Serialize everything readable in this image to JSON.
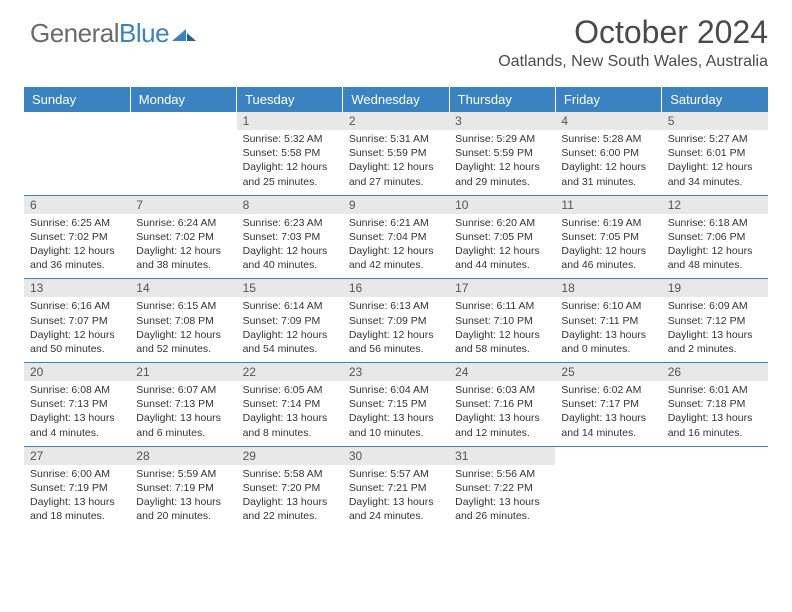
{
  "brand": {
    "text_general": "General",
    "text_blue": "Blue"
  },
  "title": "October 2024",
  "subtitle": "Oatlands, New South Wales, Australia",
  "colors": {
    "header_bg": "#3b83c0",
    "header_text": "#ffffff",
    "daynum_bg": "#e8e8e8",
    "daynum_text": "#555555",
    "border": "#3b83c0",
    "page_bg": "#ffffff",
    "brand_gray": "#6b6b6b",
    "brand_blue": "#3b83c0"
  },
  "weekdays": [
    "Sunday",
    "Monday",
    "Tuesday",
    "Wednesday",
    "Thursday",
    "Friday",
    "Saturday"
  ],
  "weeks": [
    [
      {
        "empty": true
      },
      {
        "empty": true
      },
      {
        "n": "1",
        "sunrise": "Sunrise: 5:32 AM",
        "sunset": "Sunset: 5:58 PM",
        "day1": "Daylight: 12 hours",
        "day2": "and 25 minutes."
      },
      {
        "n": "2",
        "sunrise": "Sunrise: 5:31 AM",
        "sunset": "Sunset: 5:59 PM",
        "day1": "Daylight: 12 hours",
        "day2": "and 27 minutes."
      },
      {
        "n": "3",
        "sunrise": "Sunrise: 5:29 AM",
        "sunset": "Sunset: 5:59 PM",
        "day1": "Daylight: 12 hours",
        "day2": "and 29 minutes."
      },
      {
        "n": "4",
        "sunrise": "Sunrise: 5:28 AM",
        "sunset": "Sunset: 6:00 PM",
        "day1": "Daylight: 12 hours",
        "day2": "and 31 minutes."
      },
      {
        "n": "5",
        "sunrise": "Sunrise: 5:27 AM",
        "sunset": "Sunset: 6:01 PM",
        "day1": "Daylight: 12 hours",
        "day2": "and 34 minutes."
      }
    ],
    [
      {
        "n": "6",
        "sunrise": "Sunrise: 6:25 AM",
        "sunset": "Sunset: 7:02 PM",
        "day1": "Daylight: 12 hours",
        "day2": "and 36 minutes."
      },
      {
        "n": "7",
        "sunrise": "Sunrise: 6:24 AM",
        "sunset": "Sunset: 7:02 PM",
        "day1": "Daylight: 12 hours",
        "day2": "and 38 minutes."
      },
      {
        "n": "8",
        "sunrise": "Sunrise: 6:23 AM",
        "sunset": "Sunset: 7:03 PM",
        "day1": "Daylight: 12 hours",
        "day2": "and 40 minutes."
      },
      {
        "n": "9",
        "sunrise": "Sunrise: 6:21 AM",
        "sunset": "Sunset: 7:04 PM",
        "day1": "Daylight: 12 hours",
        "day2": "and 42 minutes."
      },
      {
        "n": "10",
        "sunrise": "Sunrise: 6:20 AM",
        "sunset": "Sunset: 7:05 PM",
        "day1": "Daylight: 12 hours",
        "day2": "and 44 minutes."
      },
      {
        "n": "11",
        "sunrise": "Sunrise: 6:19 AM",
        "sunset": "Sunset: 7:05 PM",
        "day1": "Daylight: 12 hours",
        "day2": "and 46 minutes."
      },
      {
        "n": "12",
        "sunrise": "Sunrise: 6:18 AM",
        "sunset": "Sunset: 7:06 PM",
        "day1": "Daylight: 12 hours",
        "day2": "and 48 minutes."
      }
    ],
    [
      {
        "n": "13",
        "sunrise": "Sunrise: 6:16 AM",
        "sunset": "Sunset: 7:07 PM",
        "day1": "Daylight: 12 hours",
        "day2": "and 50 minutes."
      },
      {
        "n": "14",
        "sunrise": "Sunrise: 6:15 AM",
        "sunset": "Sunset: 7:08 PM",
        "day1": "Daylight: 12 hours",
        "day2": "and 52 minutes."
      },
      {
        "n": "15",
        "sunrise": "Sunrise: 6:14 AM",
        "sunset": "Sunset: 7:09 PM",
        "day1": "Daylight: 12 hours",
        "day2": "and 54 minutes."
      },
      {
        "n": "16",
        "sunrise": "Sunrise: 6:13 AM",
        "sunset": "Sunset: 7:09 PM",
        "day1": "Daylight: 12 hours",
        "day2": "and 56 minutes."
      },
      {
        "n": "17",
        "sunrise": "Sunrise: 6:11 AM",
        "sunset": "Sunset: 7:10 PM",
        "day1": "Daylight: 12 hours",
        "day2": "and 58 minutes."
      },
      {
        "n": "18",
        "sunrise": "Sunrise: 6:10 AM",
        "sunset": "Sunset: 7:11 PM",
        "day1": "Daylight: 13 hours",
        "day2": "and 0 minutes."
      },
      {
        "n": "19",
        "sunrise": "Sunrise: 6:09 AM",
        "sunset": "Sunset: 7:12 PM",
        "day1": "Daylight: 13 hours",
        "day2": "and 2 minutes."
      }
    ],
    [
      {
        "n": "20",
        "sunrise": "Sunrise: 6:08 AM",
        "sunset": "Sunset: 7:13 PM",
        "day1": "Daylight: 13 hours",
        "day2": "and 4 minutes."
      },
      {
        "n": "21",
        "sunrise": "Sunrise: 6:07 AM",
        "sunset": "Sunset: 7:13 PM",
        "day1": "Daylight: 13 hours",
        "day2": "and 6 minutes."
      },
      {
        "n": "22",
        "sunrise": "Sunrise: 6:05 AM",
        "sunset": "Sunset: 7:14 PM",
        "day1": "Daylight: 13 hours",
        "day2": "and 8 minutes."
      },
      {
        "n": "23",
        "sunrise": "Sunrise: 6:04 AM",
        "sunset": "Sunset: 7:15 PM",
        "day1": "Daylight: 13 hours",
        "day2": "and 10 minutes."
      },
      {
        "n": "24",
        "sunrise": "Sunrise: 6:03 AM",
        "sunset": "Sunset: 7:16 PM",
        "day1": "Daylight: 13 hours",
        "day2": "and 12 minutes."
      },
      {
        "n": "25",
        "sunrise": "Sunrise: 6:02 AM",
        "sunset": "Sunset: 7:17 PM",
        "day1": "Daylight: 13 hours",
        "day2": "and 14 minutes."
      },
      {
        "n": "26",
        "sunrise": "Sunrise: 6:01 AM",
        "sunset": "Sunset: 7:18 PM",
        "day1": "Daylight: 13 hours",
        "day2": "and 16 minutes."
      }
    ],
    [
      {
        "n": "27",
        "sunrise": "Sunrise: 6:00 AM",
        "sunset": "Sunset: 7:19 PM",
        "day1": "Daylight: 13 hours",
        "day2": "and 18 minutes."
      },
      {
        "n": "28",
        "sunrise": "Sunrise: 5:59 AM",
        "sunset": "Sunset: 7:19 PM",
        "day1": "Daylight: 13 hours",
        "day2": "and 20 minutes."
      },
      {
        "n": "29",
        "sunrise": "Sunrise: 5:58 AM",
        "sunset": "Sunset: 7:20 PM",
        "day1": "Daylight: 13 hours",
        "day2": "and 22 minutes."
      },
      {
        "n": "30",
        "sunrise": "Sunrise: 5:57 AM",
        "sunset": "Sunset: 7:21 PM",
        "day1": "Daylight: 13 hours",
        "day2": "and 24 minutes."
      },
      {
        "n": "31",
        "sunrise": "Sunrise: 5:56 AM",
        "sunset": "Sunset: 7:22 PM",
        "day1": "Daylight: 13 hours",
        "day2": "and 26 minutes."
      },
      {
        "empty": true
      },
      {
        "empty": true
      }
    ]
  ]
}
